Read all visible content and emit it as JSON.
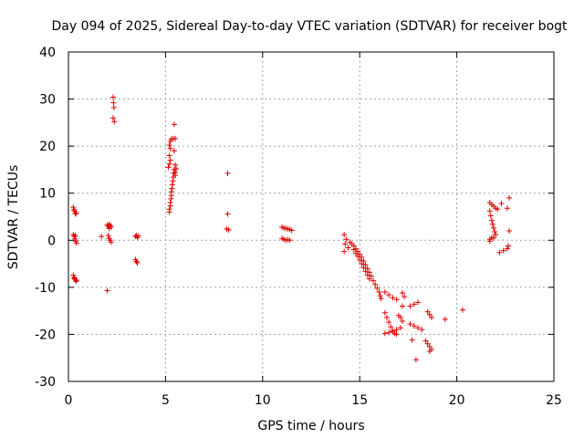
{
  "chart_data": {
    "type": "scatter",
    "title": "Day 094 of 2025, Sidereal Day-to-day VTEC variation (SDTVAR) for receiver bogt",
    "xlabel": "GPS time / hours",
    "ylabel": "SDTVAR / TECUs",
    "xlim": [
      0,
      25
    ],
    "ylim": [
      -30,
      40
    ],
    "xticks": [
      0,
      5,
      10,
      15,
      20,
      25
    ],
    "yticks": [
      -30,
      -20,
      -10,
      0,
      10,
      20,
      30,
      40
    ],
    "xtick_labels": [
      "0",
      "5",
      "10",
      "15",
      "20",
      "25"
    ],
    "ytick_labels": [
      "-30",
      "-20",
      "-10",
      "0",
      "10",
      "20",
      "30",
      "40"
    ],
    "grid": true,
    "marker": "+",
    "color": "#e00000",
    "series": [
      {
        "name": "SDTVAR",
        "points": [
          [
            0.25,
            7.0
          ],
          [
            0.28,
            6.5
          ],
          [
            0.32,
            6.2
          ],
          [
            0.36,
            5.6
          ],
          [
            0.4,
            5.8
          ],
          [
            0.25,
            1.2
          ],
          [
            0.3,
            0.8
          ],
          [
            0.34,
            0.3
          ],
          [
            0.38,
            -0.2
          ],
          [
            0.42,
            -0.6
          ],
          [
            0.35,
            1.0
          ],
          [
            0.25,
            -7.4
          ],
          [
            0.3,
            -7.9
          ],
          [
            0.34,
            -8.3
          ],
          [
            0.38,
            -8.7
          ],
          [
            0.42,
            -8.5
          ],
          [
            0.3,
            -8.1
          ],
          [
            1.7,
            0.8
          ],
          [
            2.0,
            3.2
          ],
          [
            2.05,
            3.0
          ],
          [
            2.1,
            3.4
          ],
          [
            2.15,
            3.1
          ],
          [
            2.2,
            2.8
          ],
          [
            2.1,
            2.5
          ],
          [
            2.05,
            1.0
          ],
          [
            2.1,
            0.4
          ],
          [
            2.15,
            0.0
          ],
          [
            2.2,
            -0.4
          ],
          [
            2.0,
            -10.7
          ],
          [
            2.3,
            30.4
          ],
          [
            2.32,
            29.2
          ],
          [
            2.34,
            28.2
          ],
          [
            2.3,
            26.0
          ],
          [
            2.36,
            25.2
          ],
          [
            3.45,
            0.8
          ],
          [
            3.5,
            1.0
          ],
          [
            3.55,
            0.6
          ],
          [
            3.6,
            0.9
          ],
          [
            3.45,
            -4.1
          ],
          [
            3.5,
            -4.5
          ],
          [
            3.55,
            -4.8
          ],
          [
            5.2,
            6.0
          ],
          [
            5.2,
            6.6
          ],
          [
            5.25,
            7.3
          ],
          [
            5.25,
            8.0
          ],
          [
            5.28,
            8.8
          ],
          [
            5.3,
            9.5
          ],
          [
            5.3,
            10.3
          ],
          [
            5.33,
            11.0
          ],
          [
            5.35,
            11.8
          ],
          [
            5.38,
            12.6
          ],
          [
            5.4,
            13.4
          ],
          [
            5.42,
            14.2
          ],
          [
            5.44,
            15.0
          ],
          [
            5.15,
            15.5
          ],
          [
            5.2,
            16.2
          ],
          [
            5.25,
            17.0
          ],
          [
            5.2,
            18.0
          ],
          [
            5.25,
            19.5
          ],
          [
            5.2,
            20.2
          ],
          [
            5.25,
            21.0
          ],
          [
            5.3,
            21.5
          ],
          [
            5.4,
            21.6
          ],
          [
            5.5,
            21.6
          ],
          [
            5.5,
            16.0
          ],
          [
            5.55,
            15.2
          ],
          [
            5.5,
            14.4
          ],
          [
            5.5,
            13.8
          ],
          [
            5.45,
            19.0
          ],
          [
            5.45,
            24.6
          ],
          [
            8.2,
            14.2
          ],
          [
            8.2,
            5.6
          ],
          [
            8.15,
            2.4
          ],
          [
            8.25,
            2.2
          ],
          [
            11.0,
            2.8
          ],
          [
            11.1,
            2.6
          ],
          [
            11.2,
            2.5
          ],
          [
            11.3,
            2.4
          ],
          [
            11.4,
            2.3
          ],
          [
            11.5,
            2.1
          ],
          [
            11.0,
            0.4
          ],
          [
            11.1,
            0.2
          ],
          [
            11.2,
            0.0
          ],
          [
            11.3,
            0.1
          ],
          [
            11.4,
            0.0
          ],
          [
            14.2,
            1.2
          ],
          [
            14.3,
            0.2
          ],
          [
            14.25,
            -0.8
          ],
          [
            14.2,
            -2.4
          ],
          [
            14.4,
            -1.6
          ],
          [
            14.5,
            -0.4
          ],
          [
            14.6,
            -0.8
          ],
          [
            14.7,
            -1.2
          ],
          [
            14.8,
            -1.8
          ],
          [
            14.9,
            -2.4
          ],
          [
            15.0,
            -3.0
          ],
          [
            15.1,
            -3.6
          ],
          [
            15.2,
            -4.4
          ],
          [
            15.3,
            -5.2
          ],
          [
            15.4,
            -6.0
          ],
          [
            15.5,
            -6.8
          ],
          [
            15.6,
            -7.6
          ],
          [
            15.7,
            -8.6
          ],
          [
            15.8,
            -9.4
          ],
          [
            15.9,
            -10.2
          ],
          [
            16.0,
            -11.0
          ],
          [
            16.05,
            -11.8
          ],
          [
            16.1,
            -12.4
          ],
          [
            14.7,
            -2.0
          ],
          [
            14.8,
            -2.8
          ],
          [
            14.9,
            -3.4
          ],
          [
            15.0,
            -4.2
          ],
          [
            15.1,
            -5.0
          ],
          [
            15.2,
            -5.8
          ],
          [
            15.3,
            -6.6
          ],
          [
            15.4,
            -7.4
          ],
          [
            15.5,
            -8.2
          ],
          [
            16.3,
            -11.0
          ],
          [
            16.5,
            -11.6
          ],
          [
            16.7,
            -12.2
          ],
          [
            16.9,
            -12.6
          ],
          [
            16.3,
            -15.4
          ],
          [
            16.4,
            -16.4
          ],
          [
            16.5,
            -17.4
          ],
          [
            16.6,
            -18.4
          ],
          [
            16.7,
            -19.2
          ],
          [
            16.8,
            -19.8
          ],
          [
            16.9,
            -20.0
          ],
          [
            16.3,
            -19.8
          ],
          [
            16.5,
            -19.6
          ],
          [
            16.7,
            -19.4
          ],
          [
            16.9,
            -19.0
          ],
          [
            17.1,
            -18.6
          ],
          [
            17.0,
            -16.0
          ],
          [
            17.1,
            -16.4
          ],
          [
            17.2,
            -17.2
          ],
          [
            17.2,
            -11.2
          ],
          [
            17.3,
            -12.0
          ],
          [
            17.2,
            -14.0
          ],
          [
            17.6,
            -14.0
          ],
          [
            17.8,
            -13.6
          ],
          [
            18.0,
            -13.2
          ],
          [
            17.6,
            -17.8
          ],
          [
            17.8,
            -18.2
          ],
          [
            18.0,
            -18.6
          ],
          [
            18.2,
            -19.0
          ],
          [
            17.7,
            -21.2
          ],
          [
            17.9,
            -25.4
          ],
          [
            18.5,
            -15.2
          ],
          [
            18.6,
            -15.8
          ],
          [
            18.7,
            -16.4
          ],
          [
            18.4,
            -21.4
          ],
          [
            18.5,
            -22.0
          ],
          [
            18.6,
            -22.6
          ],
          [
            18.7,
            -23.2
          ],
          [
            18.6,
            -23.6
          ],
          [
            19.4,
            -16.8
          ],
          [
            20.3,
            -14.8
          ],
          [
            21.7,
            8.0
          ],
          [
            21.8,
            7.6
          ],
          [
            21.9,
            7.2
          ],
          [
            22.0,
            6.8
          ],
          [
            22.1,
            6.6
          ],
          [
            21.7,
            6.2
          ],
          [
            21.75,
            5.2
          ],
          [
            21.8,
            4.2
          ],
          [
            21.85,
            3.4
          ],
          [
            21.9,
            2.6
          ],
          [
            21.95,
            1.8
          ],
          [
            22.0,
            1.2
          ],
          [
            21.8,
            0.6
          ],
          [
            21.7,
            0.2
          ],
          [
            21.7,
            -0.2
          ],
          [
            21.9,
            0.5
          ],
          [
            22.2,
            -2.6
          ],
          [
            22.4,
            -2.2
          ],
          [
            22.6,
            -1.8
          ],
          [
            22.3,
            7.8
          ],
          [
            22.6,
            6.8
          ],
          [
            22.7,
            9.0
          ],
          [
            22.7,
            2.0
          ],
          [
            22.65,
            -1.2
          ]
        ]
      }
    ]
  }
}
